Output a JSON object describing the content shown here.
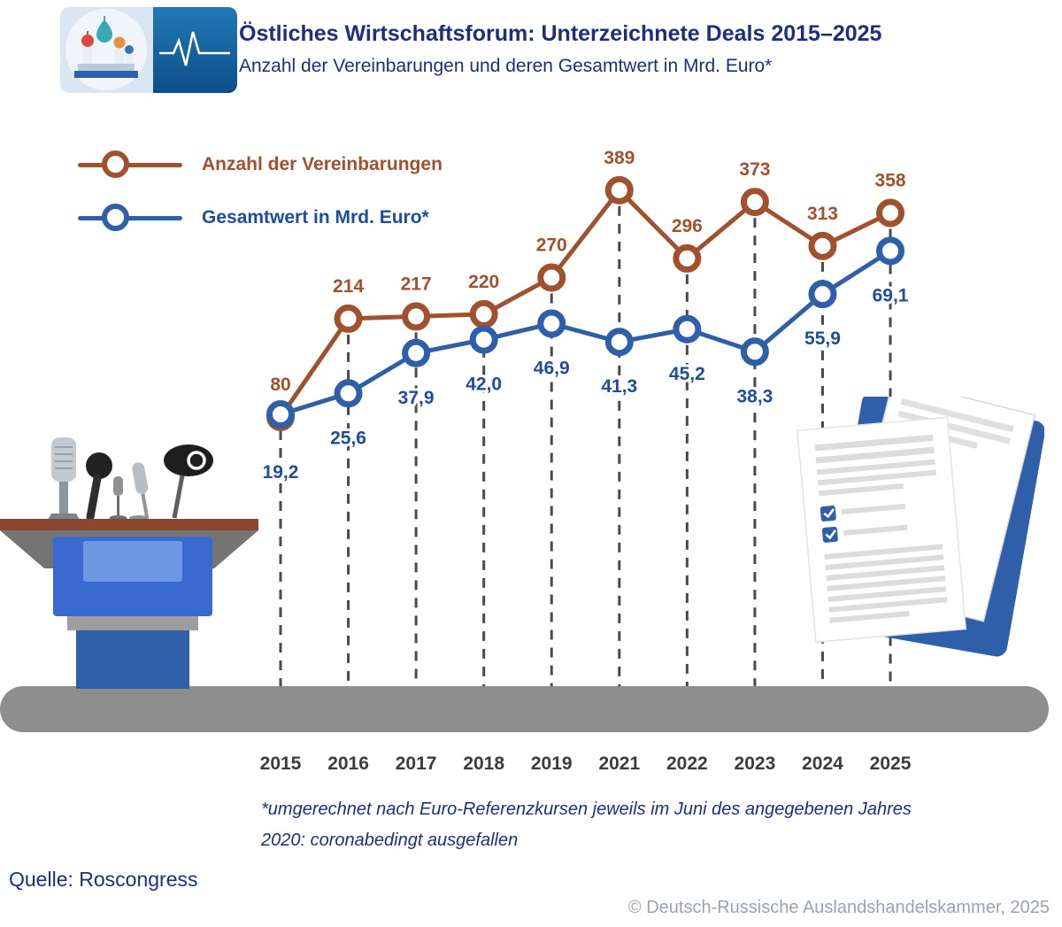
{
  "header": {
    "title": "Östliches Wirtschaftsforum: Unterzeichnete Deals 2015–2025",
    "subtitle": "Anzahl der Vereinbarungen und deren Gesamtwert in Mrd. Euro*"
  },
  "icons": {
    "logo_left": "st-basils-cathedral-icon",
    "logo_right": "heartbeat-pulse-icon",
    "left_illustration": "podium-with-microphones",
    "right_illustration": "signed-documents-folder"
  },
  "theme": {
    "navy": "#1B2F7E",
    "brown": "#A0512D",
    "blue": "#2E5FA8",
    "blue_label": "#1E4D9C",
    "floor_gray": "#8E8E8E",
    "dash_gray": "#4A4A4A",
    "year_gray": "#3C3C3C",
    "copyright_gray": "#9AA3AD",
    "background": "#FFFFFF"
  },
  "legend": [
    {
      "label": "Anzahl der Vereinbarungen",
      "color": "#A0512D",
      "label_color": "#A0512D"
    },
    {
      "label": "Gesamtwert in Mrd. Euro*",
      "color": "#2E5FA8",
      "label_color": "#1E4D9C"
    }
  ],
  "chart_data": {
    "type": "line",
    "title": "Östliches Wirtschaftsforum: Unterzeichnete Deals 2015–2025",
    "subtitle": "Anzahl der Vereinbarungen und deren Gesamtwert in Mrd. Euro*",
    "categories": [
      "2015",
      "2016",
      "2017",
      "2018",
      "2019",
      "2021",
      "2022",
      "2023",
      "2024",
      "2025"
    ],
    "series": [
      {
        "name": "Anzahl der Vereinbarungen",
        "color": "#A0512D",
        "label_color": "#A0512D",
        "values": [
          80,
          214,
          217,
          220,
          270,
          389,
          296,
          373,
          313,
          358
        ],
        "value_labels": [
          "80",
          "214",
          "217",
          "220",
          "270",
          "389",
          "296",
          "373",
          "313",
          "358"
        ]
      },
      {
        "name": "Gesamtwert in Mrd. Euro*",
        "color": "#2E5FA8",
        "label_color": "#1E4D9C",
        "values": [
          19.2,
          25.6,
          37.9,
          42.0,
          46.9,
          41.3,
          45.2,
          38.3,
          55.9,
          69.1
        ],
        "value_labels": [
          "19,2",
          "25,6",
          "37,9",
          "42,0",
          "46,9",
          "41,3",
          "45,2",
          "38,3",
          "55,9",
          "69,1"
        ]
      }
    ],
    "marker": "open-circle",
    "grid": false,
    "legend_position": "top-left",
    "missing_year_note": "2020: coronabedingt ausgefallen"
  },
  "footnotes": [
    "*umgerechnet nach Euro-Referenzkursen jeweils im Juni des angegebenen Jahres",
    "2020: coronabedingt ausgefallen"
  ],
  "source": "Quelle: Roscongress",
  "copyright": "© Deutsch-Russische Auslandshandelskammer, 2025"
}
